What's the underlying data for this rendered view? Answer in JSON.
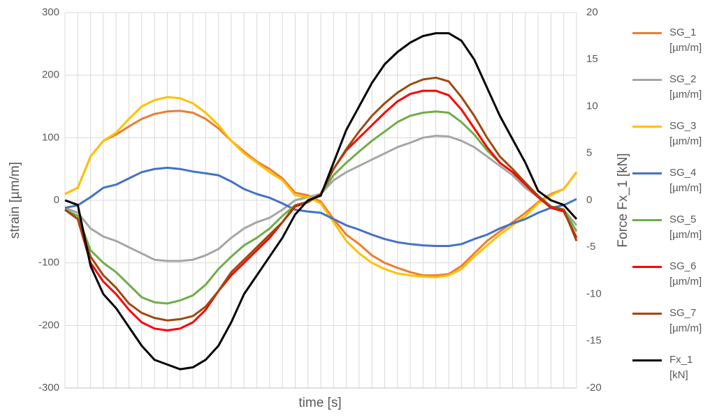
{
  "chart_data": {
    "type": "line",
    "xlabel": "time [s]",
    "ylabel": "strain [µm/m]",
    "y2label": "Force Fx_1 [kN]",
    "categories": [
      null,
      null,
      null,
      null,
      null,
      null,
      null,
      null,
      null,
      null,
      null,
      null,
      null,
      null,
      null,
      null,
      null,
      null,
      null,
      null,
      null,
      null,
      null,
      null,
      null,
      null,
      null,
      null,
      null,
      null,
      null,
      null,
      null,
      null,
      null,
      null,
      null,
      null,
      null,
      null,
      null
    ],
    "ylim": [
      -300,
      300
    ],
    "yticks": [
      -300,
      -200,
      -100,
      0,
      100,
      200,
      300
    ],
    "y2lim": [
      -20,
      20
    ],
    "y2ticks": [
      -20,
      -15,
      -10,
      -5,
      0,
      5,
      10,
      15,
      20
    ],
    "grid": true,
    "legend": "right",
    "series": [
      {
        "name": "SG_1 [µm/m]",
        "color": "#ED7D31",
        "values": [
          10,
          20,
          70,
          95,
          105,
          118,
          130,
          138,
          142,
          143,
          140,
          130,
          115,
          95,
          78,
          62,
          50,
          35,
          12,
          8,
          -2,
          -30,
          -55,
          -70,
          -88,
          -100,
          -108,
          -115,
          -120,
          -120,
          -118,
          -105,
          -85,
          -65,
          -50,
          -35,
          -20,
          -3,
          10,
          18,
          45
        ]
      },
      {
        "name": "SG_2 [µm/m]",
        "color": "#A5A5A5",
        "values": [
          -12,
          -20,
          -45,
          -58,
          -65,
          -75,
          -85,
          -95,
          -97,
          -97,
          -95,
          -88,
          -78,
          -60,
          -45,
          -35,
          -28,
          -15,
          0,
          5,
          10,
          32,
          45,
          55,
          65,
          75,
          85,
          92,
          100,
          103,
          102,
          95,
          85,
          70,
          55,
          40,
          20,
          5,
          -10,
          -15,
          -40
        ]
      },
      {
        "name": "SG_3 [µm/m]",
        "color": "#FFC000",
        "values": [
          10,
          20,
          70,
          95,
          108,
          130,
          150,
          160,
          165,
          163,
          155,
          140,
          120,
          95,
          75,
          60,
          45,
          32,
          8,
          5,
          -5,
          -35,
          -65,
          -85,
          -100,
          -110,
          -117,
          -120,
          -122,
          -123,
          -120,
          -110,
          -90,
          -72,
          -55,
          -40,
          -25,
          -5,
          8,
          18,
          45
        ]
      },
      {
        "name": "SG_4 [µm/m]",
        "color": "#4472C4",
        "values": [
          -12,
          -8,
          5,
          20,
          25,
          35,
          45,
          50,
          52,
          50,
          46,
          43,
          40,
          30,
          18,
          10,
          4,
          -5,
          -15,
          -18,
          -20,
          -30,
          -40,
          -47,
          -55,
          -62,
          -67,
          -70,
          -72,
          -73,
          -73,
          -70,
          -62,
          -55,
          -45,
          -37,
          -30,
          -20,
          -12,
          -8,
          2
        ]
      },
      {
        "name": "SG_5 [µm/m]",
        "color": "#70AD47",
        "values": [
          -15,
          -25,
          -80,
          -100,
          -115,
          -135,
          -155,
          -163,
          -165,
          -160,
          -152,
          -135,
          -110,
          -90,
          -72,
          -60,
          -45,
          -25,
          -8,
          -2,
          10,
          40,
          60,
          78,
          95,
          110,
          125,
          135,
          140,
          142,
          140,
          125,
          105,
          80,
          60,
          45,
          25,
          5,
          -10,
          -15,
          -50
        ]
      },
      {
        "name": "SG_6 [µm/m]",
        "color": "#FF0000",
        "values": [
          -15,
          -30,
          -100,
          -130,
          -150,
          -175,
          -195,
          -205,
          -208,
          -205,
          -195,
          -175,
          -145,
          -120,
          -100,
          -80,
          -60,
          -35,
          -10,
          -3,
          10,
          50,
          80,
          100,
          120,
          140,
          158,
          170,
          175,
          175,
          168,
          145,
          115,
          85,
          60,
          45,
          25,
          5,
          -12,
          -18,
          -60
        ]
      },
      {
        "name": "SG_7 [µm/m]",
        "color": "#9E480E",
        "values": [
          -15,
          -30,
          -90,
          -120,
          -140,
          -165,
          -180,
          -188,
          -192,
          -190,
          -185,
          -170,
          -145,
          -115,
          -95,
          -75,
          -55,
          -35,
          -8,
          -3,
          10,
          50,
          82,
          110,
          135,
          155,
          172,
          185,
          193,
          196,
          190,
          165,
          135,
          100,
          70,
          50,
          28,
          7,
          -10,
          -15,
          -65
        ]
      },
      {
        "name": "Fx_1 [kN]",
        "color": "#000000",
        "axis": "y2",
        "values": [
          0,
          -0.5,
          -7,
          -10,
          -11.5,
          -13.5,
          -15.5,
          -17,
          -17.5,
          -18,
          -17.8,
          -17,
          -15.5,
          -13,
          -10,
          -8,
          -6,
          -4,
          -1.5,
          0,
          0.5,
          4,
          7.5,
          10,
          12.5,
          14.5,
          15.8,
          16.8,
          17.5,
          17.8,
          17.8,
          17,
          15,
          12,
          9,
          6.5,
          4,
          1,
          0,
          -0.5,
          -2
        ]
      }
    ]
  }
}
